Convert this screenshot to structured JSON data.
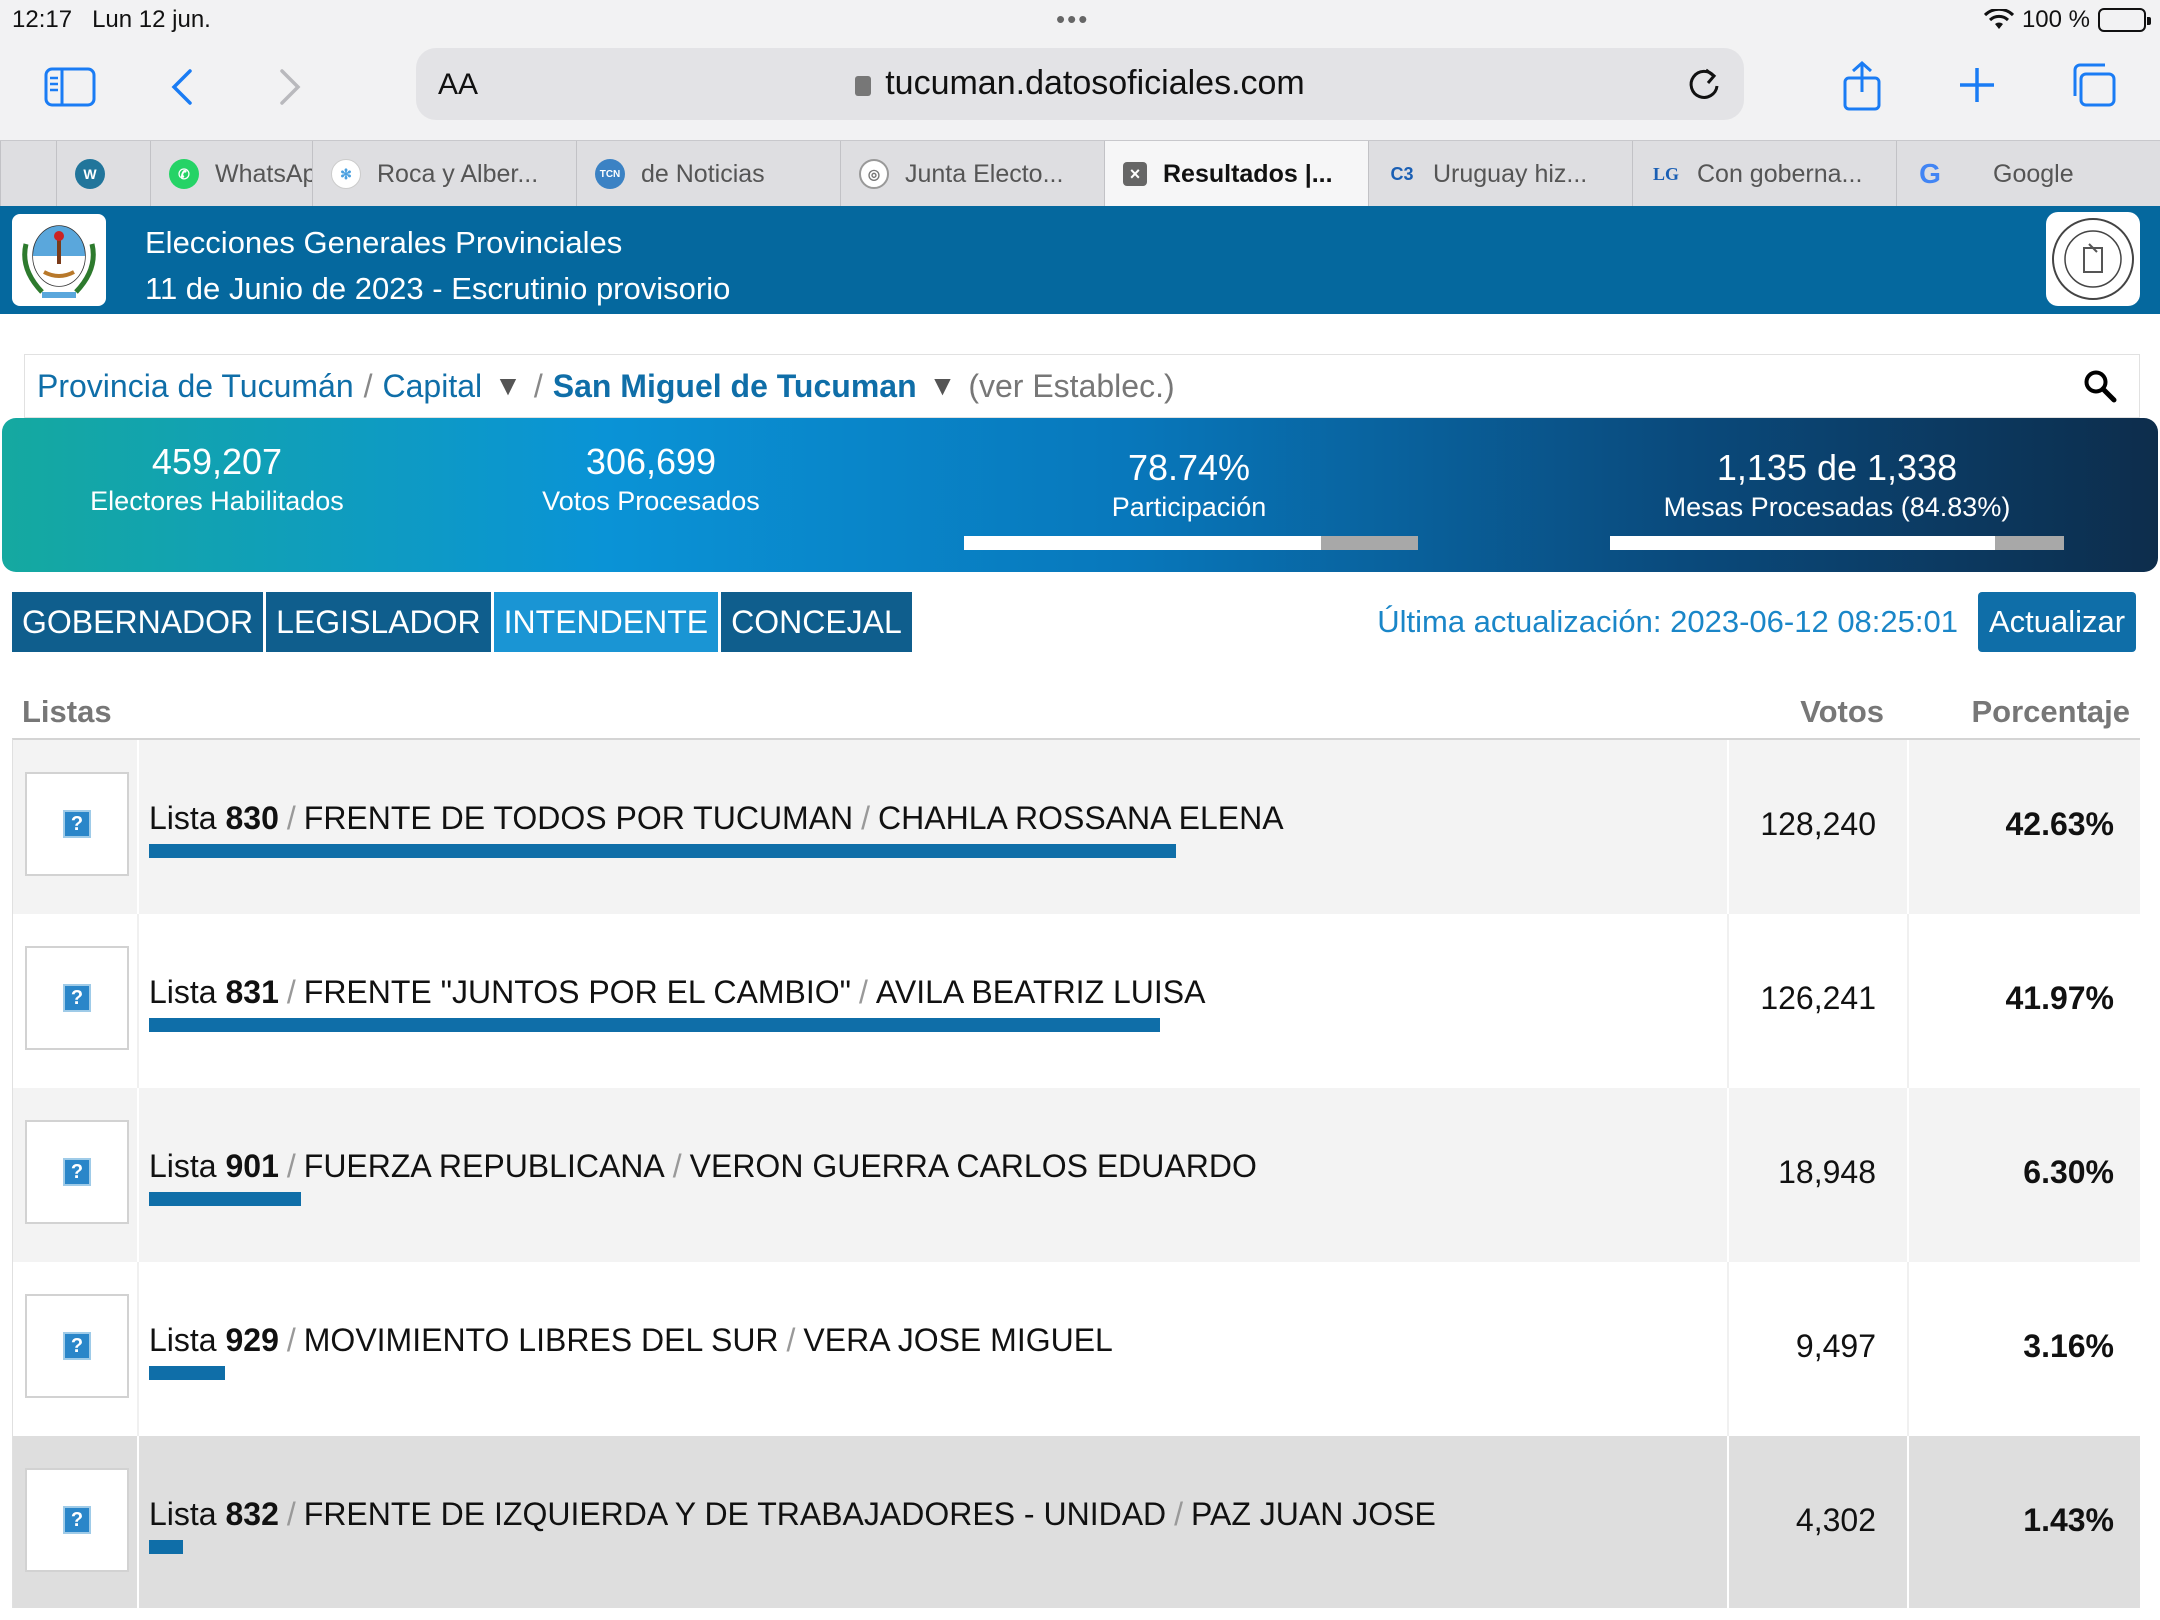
{
  "status": {
    "time": "12:17",
    "date": "Lun 12 jun.",
    "battery": "100 %"
  },
  "browser": {
    "aa": "AA",
    "url": "tucuman.datosoficiales.com"
  },
  "tabs": [
    {
      "label": "",
      "icon": "blank"
    },
    {
      "label": "",
      "icon": "wordpress-icon"
    },
    {
      "label": "WhatsAp",
      "icon": "whatsapp-icon"
    },
    {
      "label": "Roca y Alber...",
      "icon": "snowflake-icon"
    },
    {
      "label": "de Noticias",
      "icon": "news-icon"
    },
    {
      "label": "Junta Electo...",
      "icon": "seal-icon"
    },
    {
      "label": "Resultados |...",
      "icon": "close-icon",
      "active": true
    },
    {
      "label": "Uruguay hiz...",
      "icon": "c3-icon"
    },
    {
      "label": "Con goberna...",
      "icon": "lg-icon"
    },
    {
      "label": "Google",
      "icon": "google-icon"
    }
  ],
  "header": {
    "title": "Elecciones Generales Provinciales",
    "subtitle": "11 de Junio de 2023 - Escrutinio provisorio"
  },
  "breadcrumb": {
    "province": "Provincia de Tucumán",
    "sep": "/",
    "department": "Capital",
    "arrow": "▼",
    "city": "San Miguel de Tucuman",
    "establishments": "(ver Establec.)"
  },
  "stats": {
    "electores_num": "459,207",
    "electores_label": "Electores Habilitados",
    "votos_num": "306,699",
    "votos_label": "Votos Procesados",
    "participacion_num": "78.74%",
    "participacion_label": "Participación",
    "participacion_fraction": 0.7874,
    "mesas_num": "1,135 de 1,338",
    "mesas_label": "Mesas Procesadas (84.83%)",
    "mesas_fraction": 0.8483
  },
  "categories": [
    {
      "label": "GOBERNADOR"
    },
    {
      "label": "LEGISLADOR"
    },
    {
      "label": "INTENDENTE",
      "active": true
    },
    {
      "label": "CONCEJAL"
    }
  ],
  "update": {
    "text": "Última actualización: 2023-06-12 08:25:01",
    "button": "Actualizar"
  },
  "table": {
    "col_listas": "Listas",
    "col_votos": "Votos",
    "col_porcentaje": "Porcentaje",
    "rows": [
      {
        "prefix": "Lista",
        "number": "830",
        "sep": "/",
        "party": "FRENTE DE TODOS POR TUCUMAN",
        "candidate": "CHAHLA ROSSANA ELENA",
        "votes": "128,240",
        "pct": "42.63%",
        "share": 42.63
      },
      {
        "prefix": "Lista",
        "number": "831",
        "sep": "/",
        "party": "FRENTE \"JUNTOS POR EL CAMBIO\"",
        "candidate": "AVILA BEATRIZ LUISA",
        "votes": "126,241",
        "pct": "41.97%",
        "share": 41.97
      },
      {
        "prefix": "Lista",
        "number": "901",
        "sep": "/",
        "party": "FUERZA REPUBLICANA",
        "candidate": "VERON GUERRA CARLOS EDUARDO",
        "votes": "18,948",
        "pct": "6.30%",
        "share": 6.3
      },
      {
        "prefix": "Lista",
        "number": "929",
        "sep": "/",
        "party": "MOVIMIENTO LIBRES DEL SUR",
        "candidate": "VERA JOSE MIGUEL",
        "votes": "9,497",
        "pct": "3.16%",
        "share": 3.16
      },
      {
        "prefix": "Lista",
        "number": "832",
        "sep": "/",
        "party": "FRENTE DE IZQUIERDA Y DE TRABAJADORES - UNIDAD",
        "candidate": "PAZ JUAN JOSE",
        "votes": "4,302",
        "pct": "1.43%",
        "share": 1.43
      }
    ]
  },
  "colors": {
    "header_bg": "#05689e",
    "bar": "#0f6ea8",
    "tab_active": "#1a95d4",
    "tab": "#0f5e8d",
    "link": "#0f6ea8"
  }
}
